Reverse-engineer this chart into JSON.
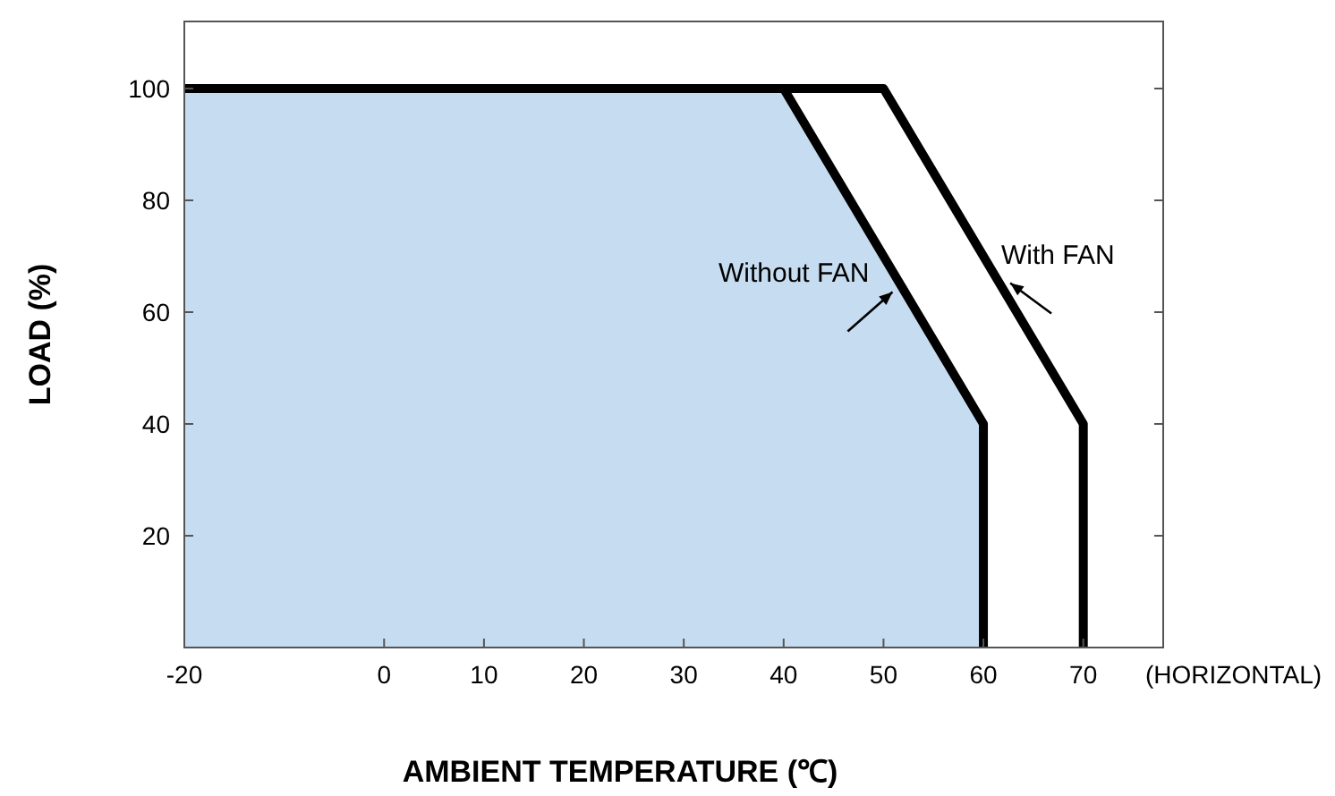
{
  "chart_data": {
    "type": "line",
    "xlabel": "AMBIENT TEMPERATURE (℃)",
    "ylabel": "LOAD (%)",
    "annotations": [
      "(HORIZONTAL)"
    ],
    "xlim": [
      -20,
      78
    ],
    "ylim": [
      0,
      112
    ],
    "xticks": [
      -20,
      0,
      10,
      20,
      30,
      40,
      50,
      60,
      70
    ],
    "yticks": [
      20,
      40,
      60,
      80,
      100
    ],
    "grid": false,
    "series": [
      {
        "name": "Without FAN",
        "type": "area",
        "color": "#c6dcf0",
        "x": [
          -20,
          40,
          60,
          60
        ],
        "values": [
          100,
          100,
          40,
          0
        ]
      },
      {
        "name": "With FAN",
        "color": "#000000",
        "x": [
          40,
          50,
          70,
          70
        ],
        "values": [
          100,
          100,
          40,
          0
        ]
      }
    ]
  }
}
